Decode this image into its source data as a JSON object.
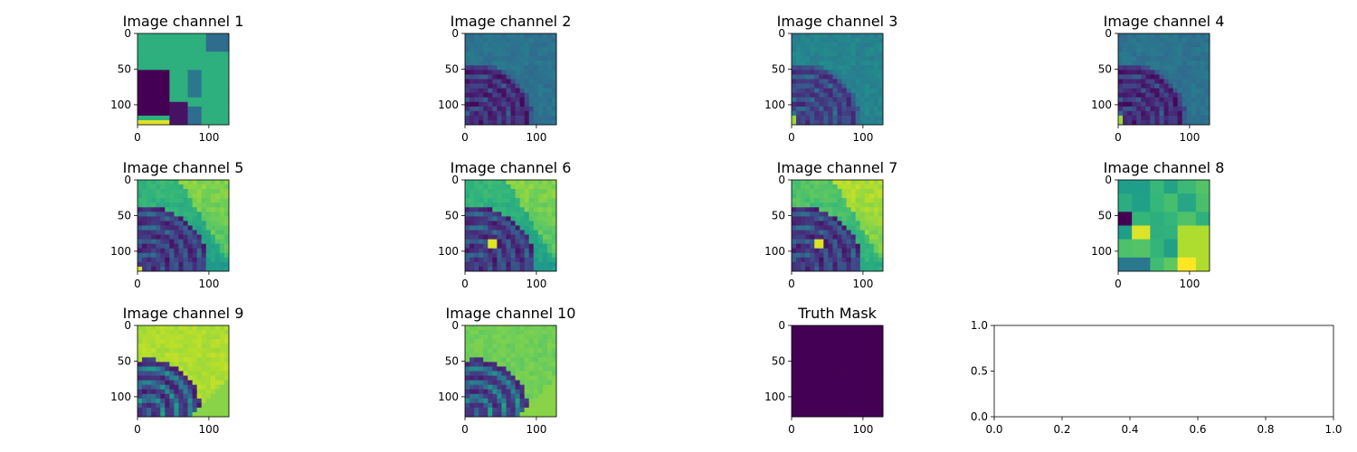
{
  "chart_data": [
    {
      "type": "heatmap",
      "title": "Image channel 1",
      "palette": "viridis",
      "pattern": "ch1",
      "xticks": [
        0,
        100
      ],
      "yticks": [
        0,
        50,
        100
      ],
      "xlim": [
        0,
        128
      ],
      "ylim": [
        128,
        0
      ]
    },
    {
      "type": "heatmap",
      "title": "Image channel 2",
      "palette": "viridis",
      "pattern": "ch2",
      "xticks": [
        0,
        100
      ],
      "yticks": [
        0,
        50,
        100
      ],
      "xlim": [
        0,
        128
      ],
      "ylim": [
        128,
        0
      ]
    },
    {
      "type": "heatmap",
      "title": "Image channel 3",
      "palette": "viridis",
      "pattern": "ch3",
      "xticks": [
        0,
        100
      ],
      "yticks": [
        0,
        50,
        100
      ],
      "xlim": [
        0,
        128
      ],
      "ylim": [
        128,
        0
      ]
    },
    {
      "type": "heatmap",
      "title": "Image channel 4",
      "palette": "viridis",
      "pattern": "ch4",
      "xticks": [
        0,
        100
      ],
      "yticks": [
        0,
        50,
        100
      ],
      "xlim": [
        0,
        128
      ],
      "ylim": [
        128,
        0
      ]
    },
    {
      "type": "heatmap",
      "title": "Image channel 5",
      "palette": "viridis",
      "pattern": "ch5",
      "xticks": [
        0,
        100
      ],
      "yticks": [
        0,
        50,
        100
      ],
      "xlim": [
        0,
        128
      ],
      "ylim": [
        128,
        0
      ]
    },
    {
      "type": "heatmap",
      "title": "Image channel 6",
      "palette": "viridis",
      "pattern": "ch6",
      "xticks": [
        0,
        100
      ],
      "yticks": [
        0,
        50,
        100
      ],
      "xlim": [
        0,
        128
      ],
      "ylim": [
        128,
        0
      ]
    },
    {
      "type": "heatmap",
      "title": "Image channel 7",
      "palette": "viridis",
      "pattern": "ch7",
      "xticks": [
        0,
        100
      ],
      "yticks": [
        0,
        50,
        100
      ],
      "xlim": [
        0,
        128
      ],
      "ylim": [
        128,
        0
      ]
    },
    {
      "type": "heatmap",
      "title": "Image channel 8",
      "palette": "viridis",
      "pattern": "ch8",
      "xticks": [
        0,
        100
      ],
      "yticks": [
        0,
        50,
        100
      ],
      "xlim": [
        0,
        128
      ],
      "ylim": [
        128,
        0
      ]
    },
    {
      "type": "heatmap",
      "title": "Image channel 9",
      "palette": "viridis",
      "pattern": "ch9",
      "xticks": [
        0,
        100
      ],
      "yticks": [
        0,
        50,
        100
      ],
      "xlim": [
        0,
        128
      ],
      "ylim": [
        128,
        0
      ]
    },
    {
      "type": "heatmap",
      "title": "Image channel 10",
      "palette": "viridis",
      "pattern": "ch10",
      "xticks": [
        0,
        100
      ],
      "yticks": [
        0,
        50,
        100
      ],
      "xlim": [
        0,
        128
      ],
      "ylim": [
        128,
        0
      ]
    },
    {
      "type": "heatmap",
      "title": "Truth Mask",
      "palette": "viridis",
      "pattern": "mask",
      "xticks": [
        0,
        100
      ],
      "yticks": [
        0,
        50,
        100
      ],
      "xlim": [
        0,
        128
      ],
      "ylim": [
        128,
        0
      ]
    },
    {
      "type": "line",
      "title": "",
      "series": [],
      "xticks": [
        "0.0",
        "0.2",
        "0.4",
        "0.6",
        "0.8",
        "1.0"
      ],
      "yticks": [
        "0.0",
        "0.5",
        "1.0"
      ],
      "xlim": [
        0,
        1
      ],
      "ylim": [
        0,
        1
      ]
    }
  ]
}
